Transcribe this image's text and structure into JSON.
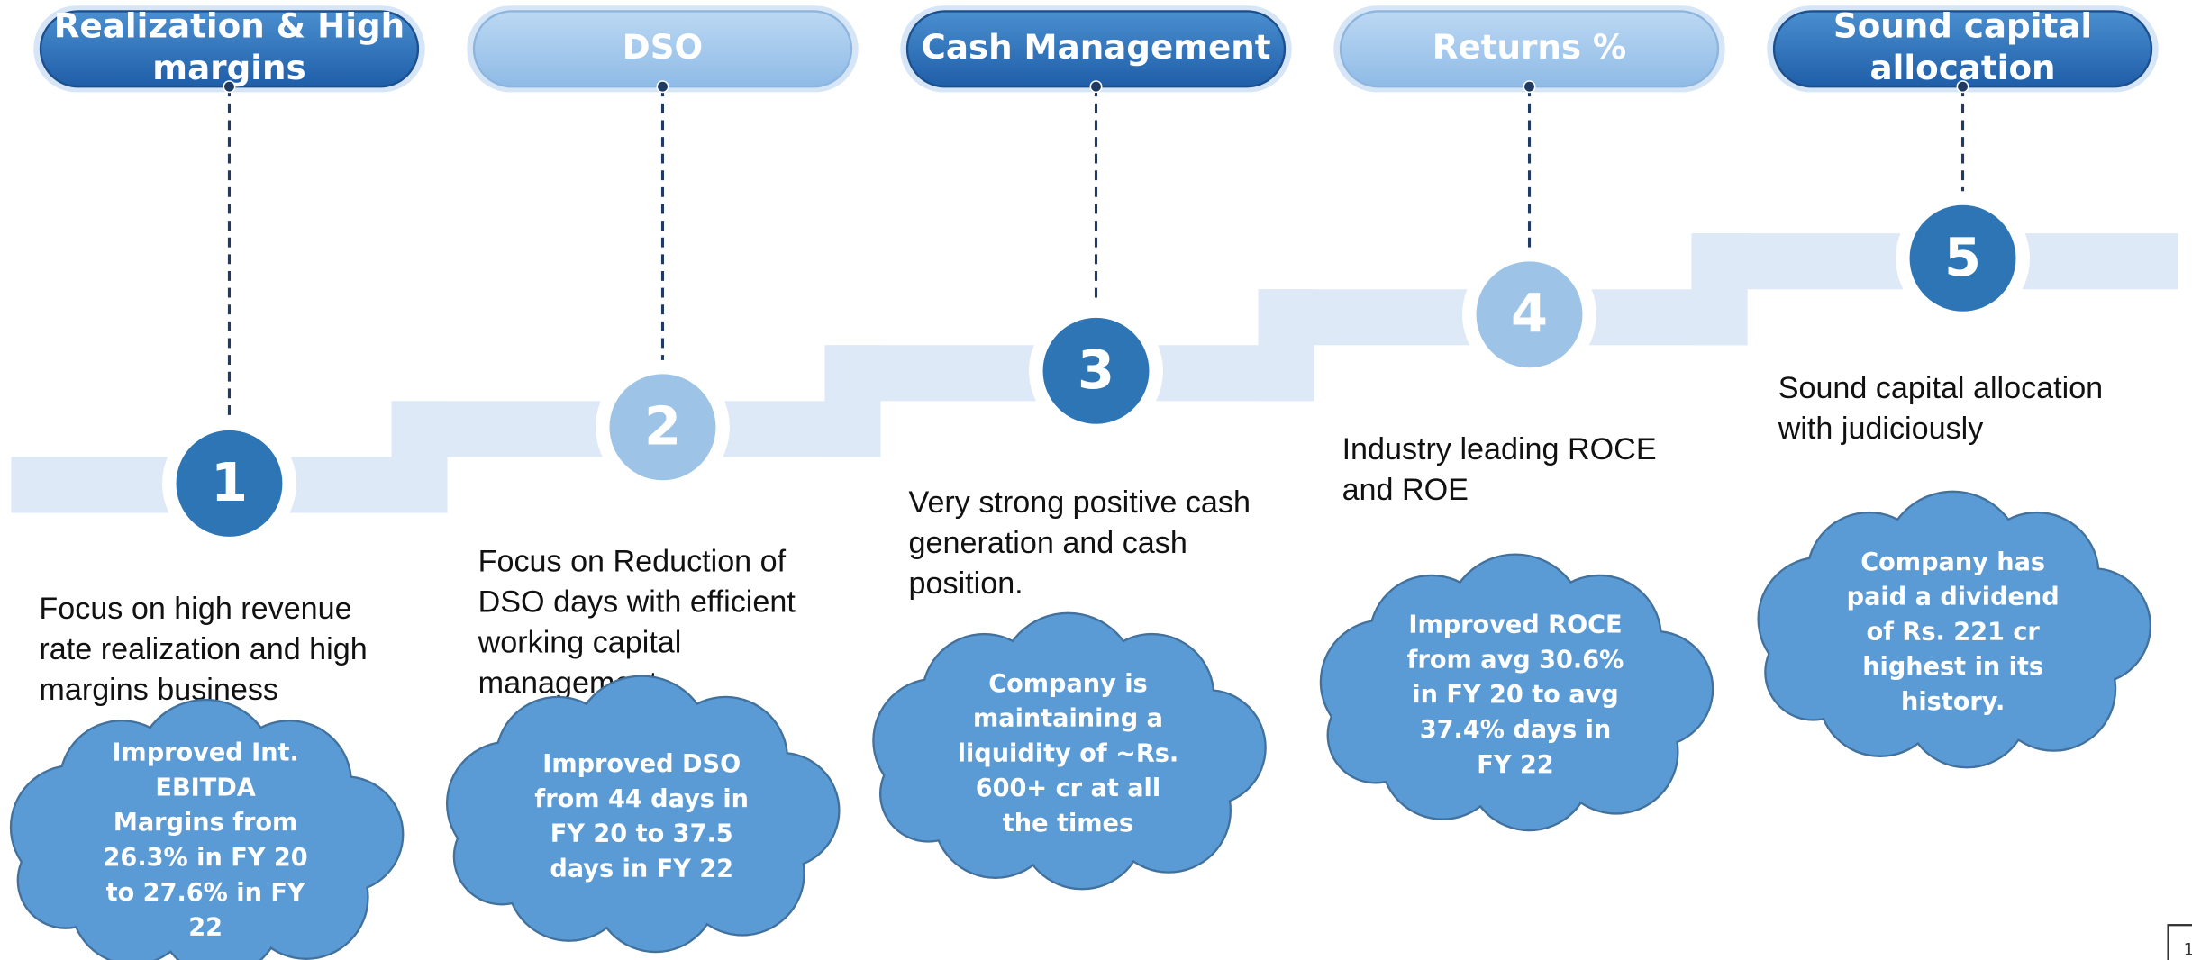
{
  "steps": [
    {
      "title": [
        "Realization & High",
        "margins"
      ],
      "number": "1",
      "style": "dark",
      "description": [
        "Focus on high revenue",
        "rate realization and high",
        "margins business"
      ],
      "cloud": [
        "Improved Int.",
        "EBITDA",
        "Margins from",
        "26.3% in FY 20",
        "to 27.6% in FY",
        "22"
      ]
    },
    {
      "title": [
        "DSO"
      ],
      "number": "2",
      "style": "light",
      "description": [
        "Focus on Reduction of",
        "DSO days with efficient",
        "working capital",
        "management"
      ],
      "cloud": [
        "Improved DSO",
        "from 44 days in",
        "FY 20 to 37.5",
        "days in FY 22"
      ]
    },
    {
      "title": [
        "Cash Management"
      ],
      "number": "3",
      "style": "dark",
      "description": [
        "Very strong positive cash",
        "generation and cash",
        "position."
      ],
      "cloud": [
        "Company is",
        "maintaining a",
        "liquidity of ~Rs.",
        "600+ cr at all",
        "the times"
      ]
    },
    {
      "title": [
        "Returns %"
      ],
      "number": "4",
      "style": "light",
      "description": [
        "Industry leading ROCE",
        "and ROE"
      ],
      "cloud": [
        "Improved ROCE",
        "from avg 30.6%",
        "in FY 20 to avg",
        "37.4% days in",
        "FY 22"
      ]
    },
    {
      "title": [
        "Sound capital",
        "allocation"
      ],
      "number": "5",
      "style": "dark",
      "description": [
        "Sound capital allocation",
        "with judiciously"
      ],
      "cloud": [
        "Company has",
        "paid a dividend",
        "of Rs. 221 cr",
        "highest in its",
        "history."
      ]
    }
  ],
  "page_number": "1"
}
